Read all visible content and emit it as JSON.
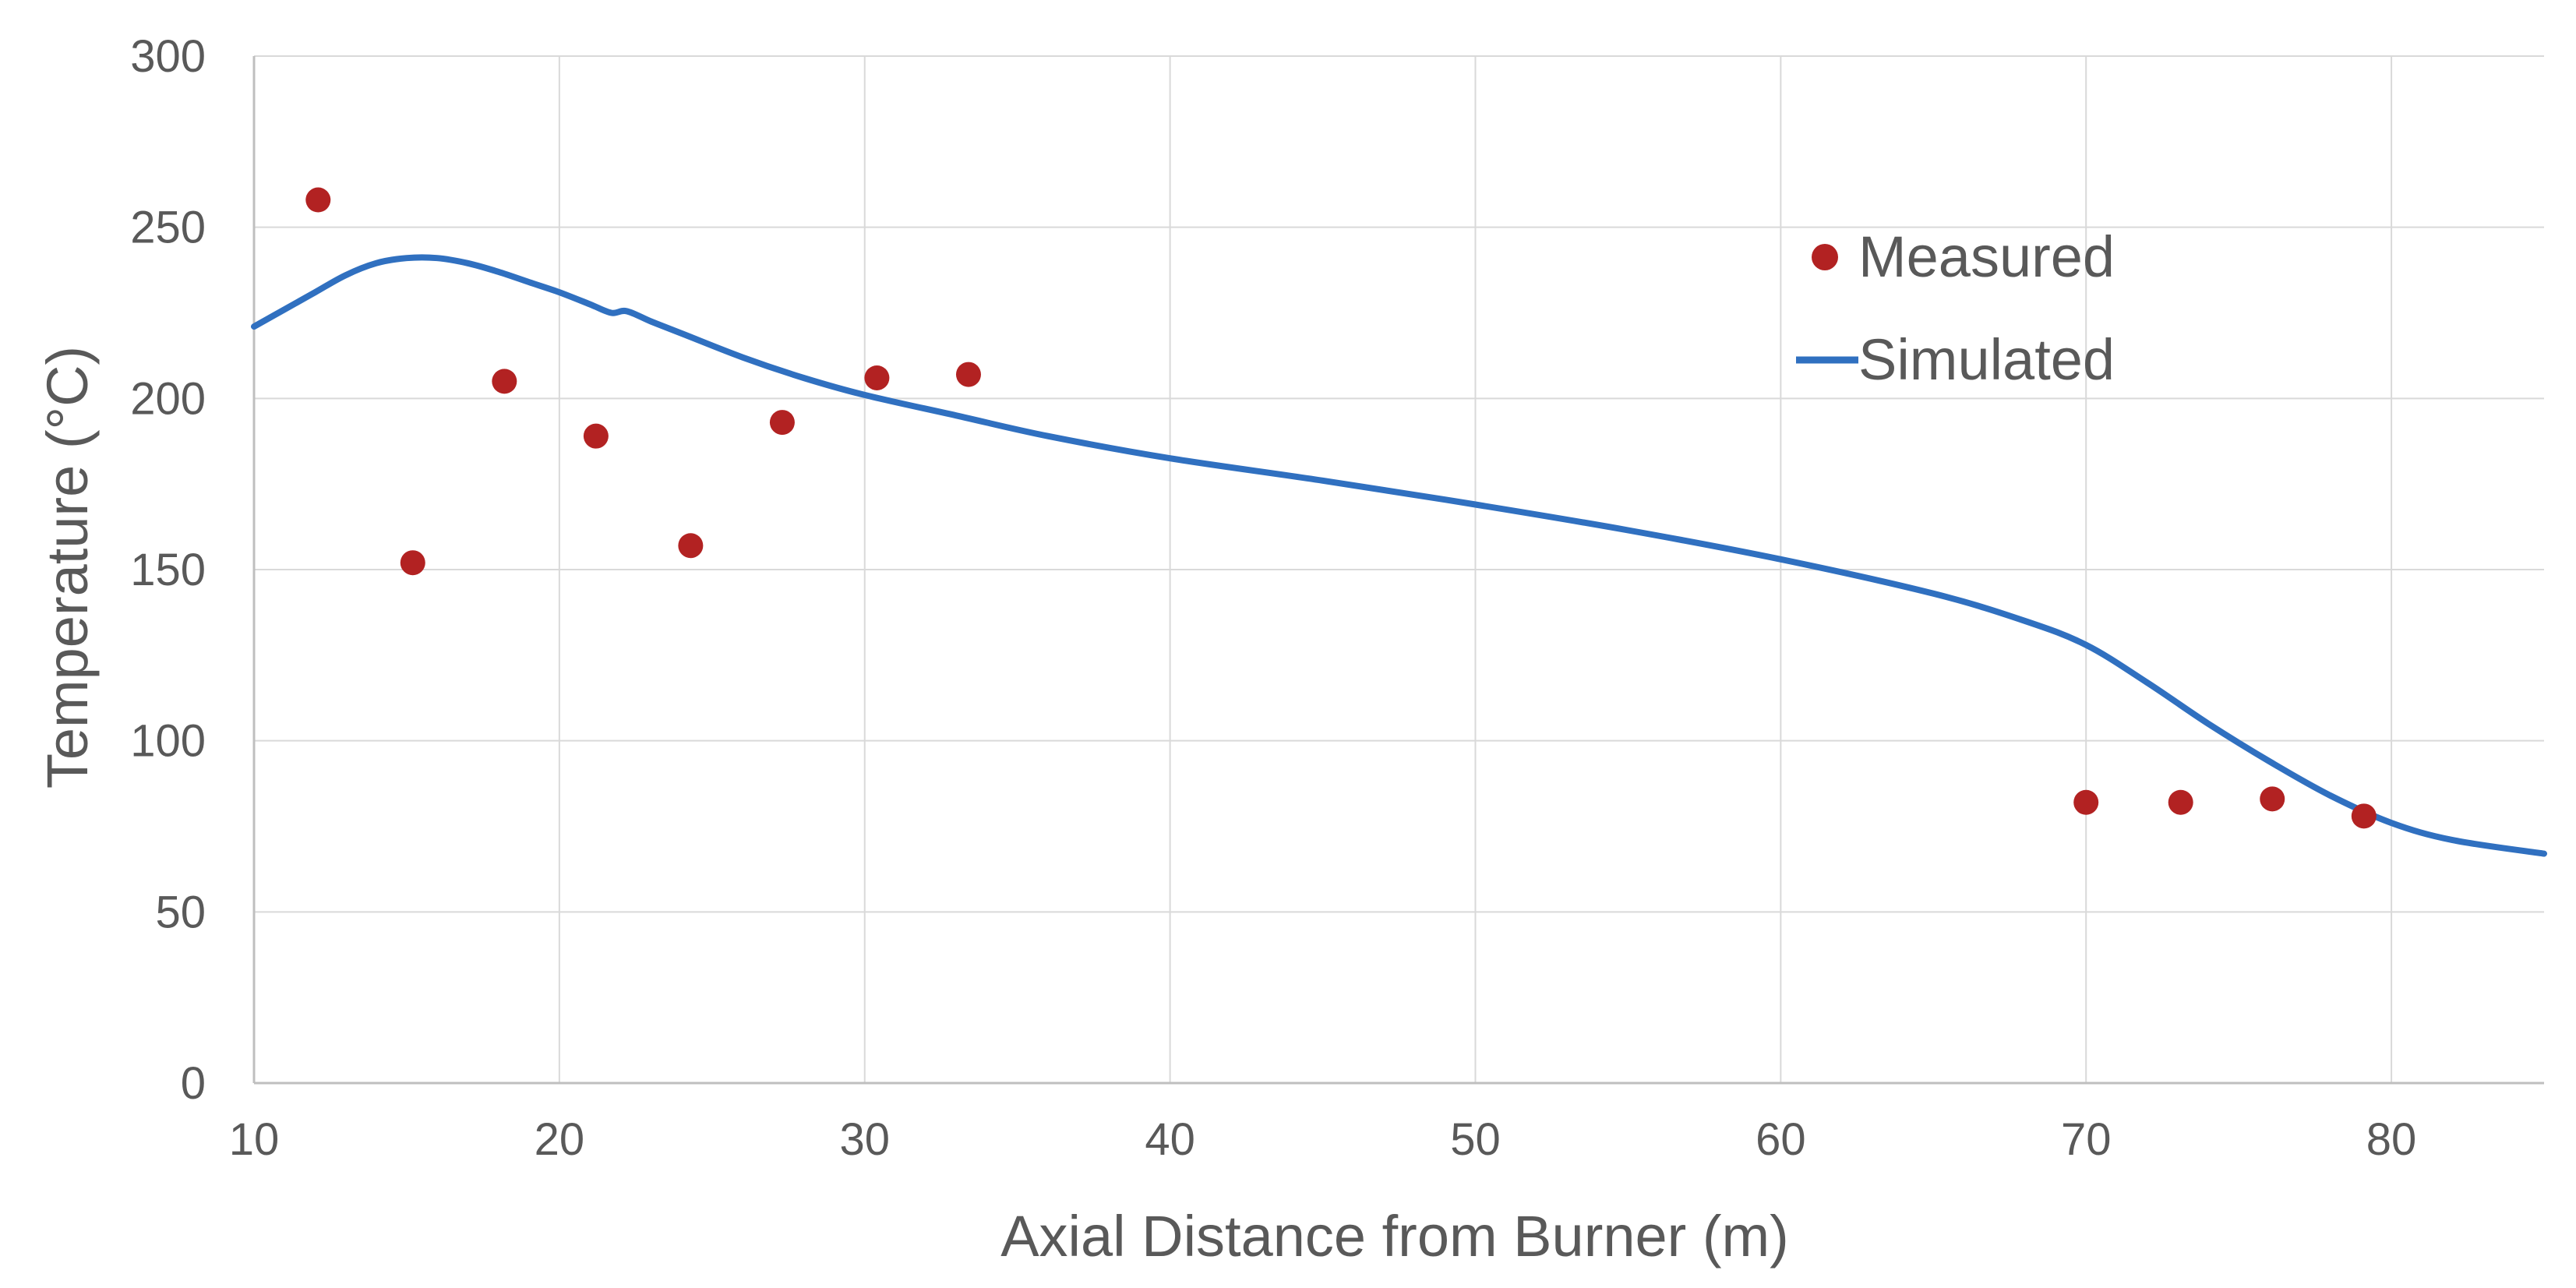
{
  "chart_data": {
    "type": "scatter+line",
    "title": "",
    "xlabel": "Axial Distance from Burner (m)",
    "ylabel": "Temperature (°C)",
    "xlim": [
      10,
      85
    ],
    "ylim": [
      0,
      300
    ],
    "x_ticks": [
      10,
      20,
      30,
      40,
      50,
      60,
      70,
      80
    ],
    "y_ticks": [
      0,
      50,
      100,
      150,
      200,
      250,
      300
    ],
    "grid": true,
    "legend_position": "top-right",
    "series": [
      {
        "name": "Measured",
        "kind": "scatter",
        "color": "#B22222",
        "x": [
          12.1,
          15.2,
          18.2,
          21.2,
          24.3,
          27.3,
          30.4,
          33.4,
          70.0,
          73.1,
          76.1,
          79.1
        ],
        "y": [
          258,
          152,
          205,
          189,
          157,
          193,
          206,
          207,
          82,
          82,
          83,
          78
        ]
      },
      {
        "name": "Simulated",
        "kind": "line",
        "color": "#3070C0",
        "x": [
          10,
          11,
          12,
          13,
          14,
          15,
          16,
          17,
          18,
          19,
          20,
          21,
          21.7,
          22.2,
          23,
          24,
          26,
          28,
          30,
          33,
          36,
          40,
          45,
          50,
          55,
          60,
          65,
          68,
          70,
          72,
          74,
          76,
          78,
          80,
          82,
          85
        ],
        "y": [
          221,
          226,
          231,
          236,
          239.5,
          241,
          241,
          239.5,
          237,
          234,
          231,
          227.5,
          225,
          225.5,
          222.5,
          219,
          212,
          206,
          201,
          195,
          189,
          182.5,
          176,
          169,
          161.5,
          153,
          143,
          135,
          128,
          117,
          105,
          94,
          84,
          76,
          71,
          67
        ]
      }
    ]
  }
}
